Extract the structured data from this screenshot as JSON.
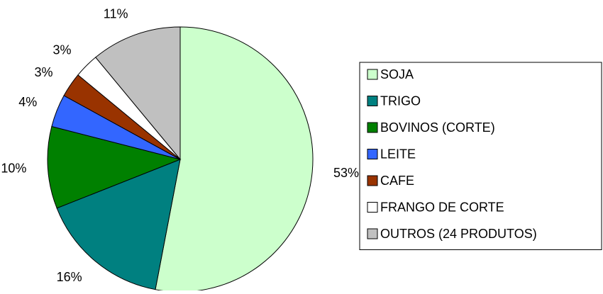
{
  "chart_data": {
    "type": "pie",
    "categories": [
      "SOJA",
      "TRIGO",
      "BOVINOS (CORTE)",
      "LEITE",
      "CAFE",
      "FRANGO DE CORTE",
      "OUTROS (24 PRODUTOS)"
    ],
    "values": [
      53,
      16,
      10,
      4,
      3,
      3,
      11
    ],
    "value_labels": [
      "53%",
      "16%",
      "10%",
      "4%",
      "3%",
      "3%",
      "11%"
    ],
    "colors": [
      "#ccffcc",
      "#008080",
      "#008000",
      "#3366ff",
      "#993300",
      "#ffffff",
      "#c0c0c0"
    ],
    "legend": "right"
  }
}
